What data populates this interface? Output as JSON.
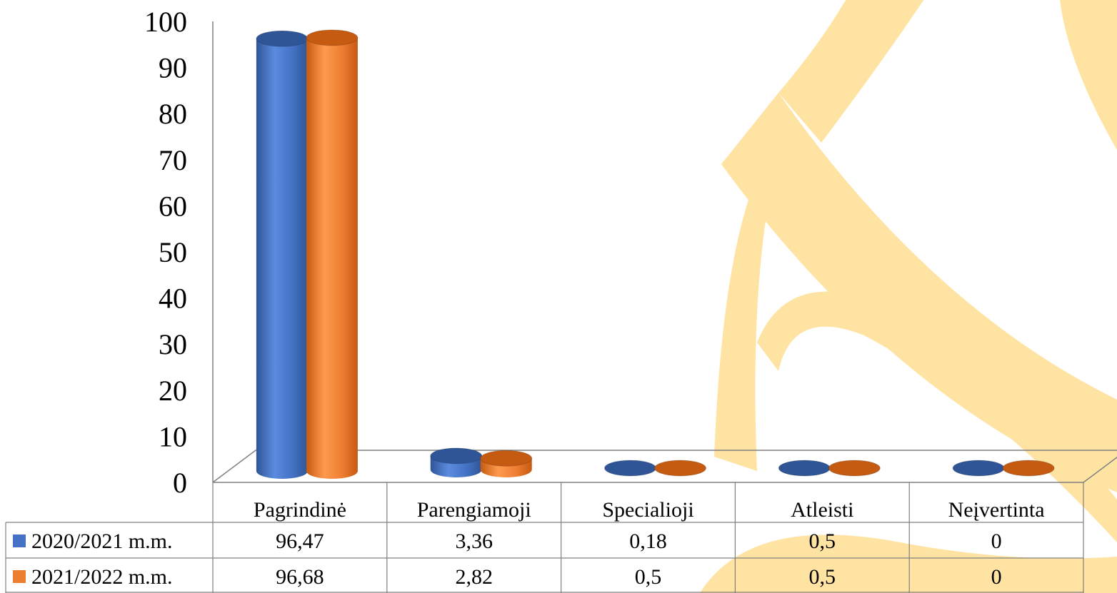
{
  "chart_data": {
    "type": "bar",
    "title": "",
    "xlabel": "",
    "ylabel": "",
    "ylim": [
      0,
      100
    ],
    "yticks": [
      0,
      10,
      20,
      30,
      40,
      50,
      60,
      70,
      80,
      90,
      100
    ],
    "categories": [
      "Pagrindinė",
      "Parengiamoji",
      "Specialioji",
      "Atleisti",
      "Neįvertinta"
    ],
    "series": [
      {
        "name": "2020/2021 m.m.",
        "values": [
          96.47,
          3.36,
          0.18,
          0.5,
          0
        ],
        "labels": [
          "96,47",
          "3,36",
          "0,18",
          "0,5",
          "0"
        ],
        "color": "#4472C4"
      },
      {
        "name": "2021/2022 m.m.",
        "values": [
          96.68,
          2.82,
          0.5,
          0.5,
          0
        ],
        "labels": [
          "96,68",
          "2,82",
          "0,5",
          "0,5",
          "0"
        ],
        "color": "#ED7D31"
      }
    ],
    "legend": "data-table",
    "grid": false,
    "style": "3d-cylinder"
  },
  "colors": {
    "watermark": "#FFE3A3",
    "axis": "#808080"
  }
}
